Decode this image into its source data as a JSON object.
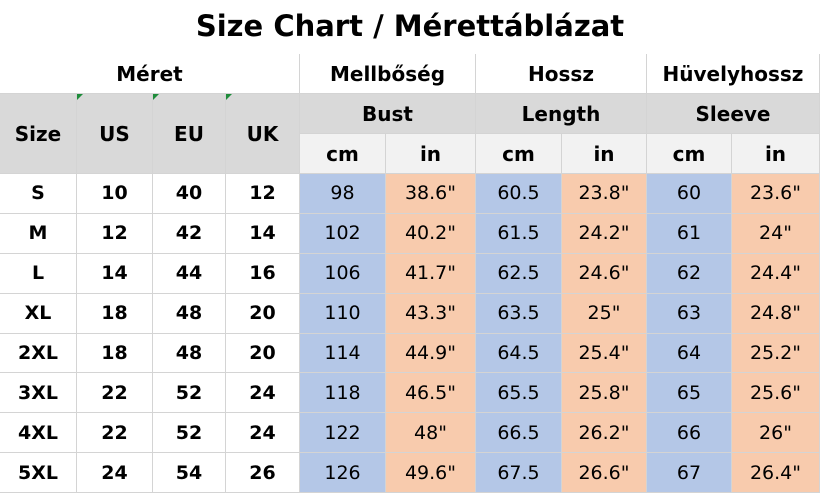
{
  "title": "Size Chart / Mérettáblázat",
  "header": {
    "groups": [
      "Méret",
      "Mellbőség",
      "Hossz",
      "Hüvelyhossz"
    ],
    "columns": [
      "Size",
      "US",
      "EU",
      "UK"
    ],
    "measures": [
      "Bust",
      "Length",
      "Sleeve"
    ],
    "units": [
      "cm",
      "in",
      "cm",
      "in",
      "cm",
      "in"
    ]
  },
  "table": {
    "rows": [
      [
        "S",
        "10",
        "40",
        "12",
        "98",
        "38.6\"",
        "60.5",
        "23.8\"",
        "60",
        "23.6\""
      ],
      [
        "M",
        "12",
        "42",
        "14",
        "102",
        "40.2\"",
        "61.5",
        "24.2\"",
        "61",
        "24\""
      ],
      [
        "L",
        "14",
        "44",
        "16",
        "106",
        "41.7\"",
        "62.5",
        "24.6\"",
        "62",
        "24.4\""
      ],
      [
        "XL",
        "18",
        "48",
        "20",
        "110",
        "43.3\"",
        "63.5",
        "25\"",
        "63",
        "24.8\""
      ],
      [
        "2XL",
        "18",
        "48",
        "20",
        "114",
        "44.9\"",
        "64.5",
        "25.4\"",
        "64",
        "25.2\""
      ],
      [
        "3XL",
        "22",
        "52",
        "24",
        "118",
        "46.5\"",
        "65.5",
        "25.8\"",
        "65",
        "25.6\""
      ],
      [
        "4XL",
        "22",
        "52",
        "24",
        "122",
        "48\"",
        "66.5",
        "26.2\"",
        "66",
        "26\""
      ],
      [
        "5XL",
        "24",
        "54",
        "26",
        "126",
        "49.6\"",
        "67.5",
        "26.6\"",
        "67",
        "26.4\""
      ]
    ]
  }
}
